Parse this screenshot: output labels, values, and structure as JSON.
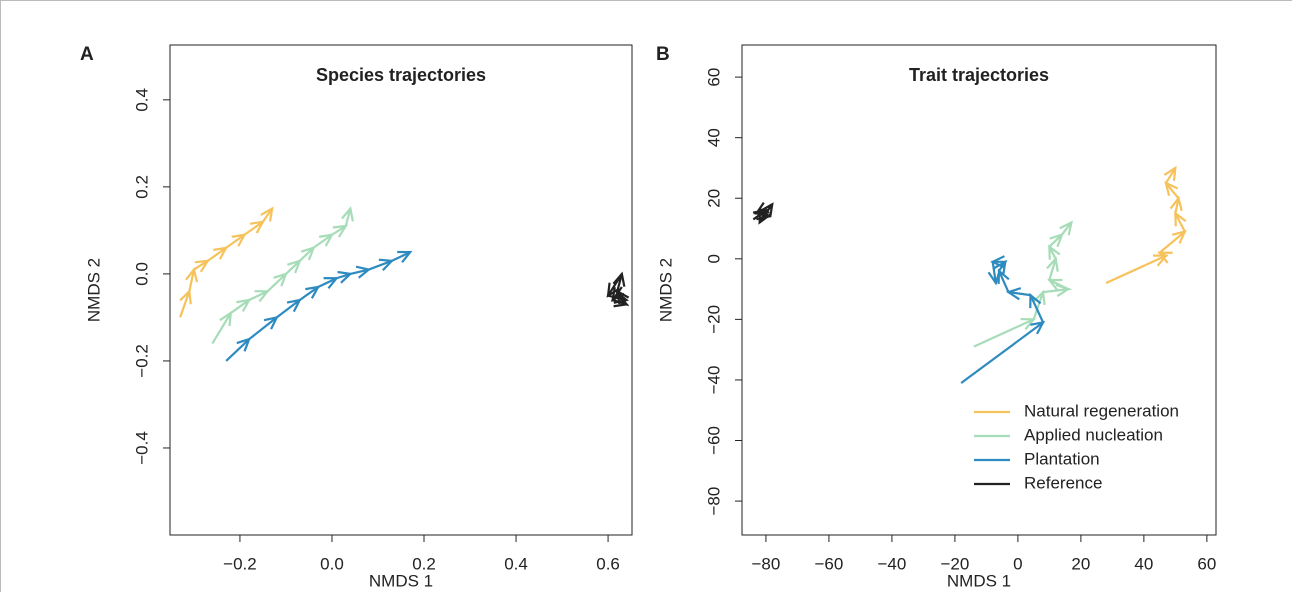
{
  "chart_data": [
    {
      "type": "trajectory",
      "panel_label": "A",
      "title": "Species trajectories",
      "x_label": "NMDS 1",
      "y_label": "NMDS 2",
      "xlim": [
        -0.352,
        0.652
      ],
      "ylim": [
        -0.6,
        0.526
      ],
      "xticks": [
        {
          "value": -0.2,
          "label": "−0.2"
        },
        {
          "value": 0,
          "label": "0.0"
        },
        0.2,
        0.4,
        0.6
      ],
      "yticks": [
        {
          "value": -0.4,
          "label": "−0.4"
        },
        {
          "value": -0.2,
          "label": "−0.2"
        },
        {
          "value": 0,
          "label": "0.0"
        },
        0.2,
        0.4
      ],
      "series": [
        {
          "name": "Natural regeneration",
          "color": "#f6c25b",
          "x": [
            -0.33,
            -0.31,
            -0.3,
            -0.27,
            -0.23,
            -0.19,
            -0.15,
            -0.13
          ],
          "values": [
            -0.1,
            -0.04,
            0.01,
            0.03,
            0.06,
            0.09,
            0.12,
            0.15
          ]
        },
        {
          "name": "Applied nucleation",
          "color": "#a6dcb7",
          "x": [
            -0.26,
            -0.22,
            -0.18,
            -0.14,
            -0.1,
            -0.07,
            -0.04,
            0.0,
            0.03,
            0.04
          ],
          "values": [
            -0.16,
            -0.09,
            -0.06,
            -0.04,
            0.0,
            0.03,
            0.06,
            0.09,
            0.11,
            0.15
          ]
        },
        {
          "name": "Plantation",
          "color": "#2e8bc0",
          "x": [
            -0.23,
            -0.18,
            -0.12,
            -0.07,
            -0.03,
            0.01,
            0.04,
            0.08,
            0.13,
            0.17
          ],
          "values": [
            -0.2,
            -0.15,
            -0.1,
            -0.06,
            -0.03,
            -0.01,
            0.0,
            0.01,
            0.03,
            0.05
          ]
        },
        {
          "name": "Reference",
          "color": "#222222",
          "x": [
            0.63,
            0.61,
            0.64,
            0.62,
            0.63,
            0.6,
            0.64
          ],
          "values": [
            -0.03,
            -0.06,
            -0.07,
            -0.04,
            0.0,
            -0.05,
            -0.06
          ]
        }
      ]
    },
    {
      "type": "trajectory",
      "panel_label": "B",
      "title": "Trait trajectories",
      "x_label": "NMDS 1",
      "y_label": "NMDS 2",
      "xlim": [
        -87.6,
        62.9
      ],
      "ylim": [
        -91.2,
        70.6
      ],
      "xticks": [
        {
          "value": -80,
          "label": "−80"
        },
        {
          "value": -60,
          "label": "−60"
        },
        {
          "value": -40,
          "label": "−40"
        },
        {
          "value": -20,
          "label": "−20"
        },
        0,
        20,
        40,
        60
      ],
      "yticks": [
        {
          "value": -80,
          "label": "−80"
        },
        {
          "value": -60,
          "label": "−60"
        },
        {
          "value": -40,
          "label": "−40"
        },
        {
          "value": -20,
          "label": "−20"
        },
        0,
        20,
        40,
        60
      ],
      "legend": "bottomright",
      "series": [
        {
          "name": "Natural regeneration",
          "color": "#f6c25b",
          "x": [
            28,
            47,
            45,
            53,
            50,
            51,
            47,
            50
          ],
          "values": [
            -8,
            1,
            2,
            9,
            15,
            20,
            25,
            30
          ]
        },
        {
          "name": "Applied nucleation",
          "color": "#a6dcb7",
          "x": [
            -14,
            5,
            8,
            16,
            10,
            12,
            10,
            14,
            17
          ],
          "values": [
            -29,
            -20,
            -11,
            -10,
            -7,
            0,
            4,
            8,
            12
          ]
        },
        {
          "name": "Plantation",
          "color": "#2e8bc0",
          "x": [
            -18,
            8,
            4,
            -3,
            -6,
            -4,
            -8,
            -7
          ],
          "values": [
            -41,
            -21,
            -12,
            -11,
            -4,
            -1,
            -1,
            -8
          ]
        },
        {
          "name": "Reference",
          "color": "#222222",
          "x": [
            -84,
            -80,
            -82,
            -78,
            -83,
            -79
          ],
          "values": [
            13,
            16,
            12,
            18,
            15,
            14
          ]
        }
      ]
    }
  ]
}
